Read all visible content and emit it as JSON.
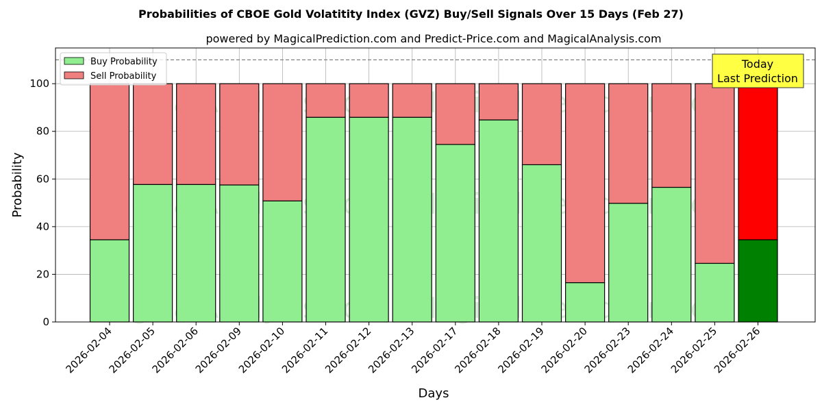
{
  "chart_data": {
    "type": "bar",
    "stacked": true,
    "title": "Probabilities of CBOE Gold Volatitity Index (GVZ) Buy/Sell Signals Over 15 Days (Feb 27)",
    "subtitle": "powered by MagicalPrediction.com and Predict-Price.com and MagicalAnalysis.com",
    "xlabel": "Days",
    "ylabel": "Probability",
    "ylim": [
      0,
      115
    ],
    "yticks": [
      0,
      20,
      40,
      60,
      80,
      100
    ],
    "reference_line": 110,
    "grid": true,
    "legend_position": "top-left",
    "categories": [
      "2026-02-04",
      "2026-02-05",
      "2026-02-06",
      "2026-02-09",
      "2026-02-10",
      "2026-02-11",
      "2026-02-12",
      "2026-02-13",
      "2026-02-17",
      "2026-02-18",
      "2026-02-19",
      "2026-02-20",
      "2026-02-23",
      "2026-02-24",
      "2026-02-25",
      "2026-02-26"
    ],
    "series": [
      {
        "name": "Buy Probability",
        "color": "#90ee90",
        "highlight_color": "#008000",
        "values": [
          34.5,
          57.7,
          57.7,
          57.5,
          50.8,
          85.9,
          85.9,
          85.9,
          74.5,
          84.8,
          66.0,
          16.5,
          49.8,
          56.5,
          24.6,
          34.5
        ]
      },
      {
        "name": "Sell Probability",
        "color": "#f08080",
        "highlight_color": "#ff0000",
        "values": [
          65.5,
          42.3,
          42.3,
          42.5,
          49.2,
          14.1,
          14.1,
          14.1,
          25.5,
          15.2,
          34.0,
          83.5,
          50.2,
          43.5,
          75.4,
          65.5
        ]
      }
    ],
    "highlight_index": 15,
    "annotation": {
      "lines": [
        "Today",
        "Last Prediction"
      ],
      "background": "#ffff44"
    },
    "watermarks": [
      "MagicalAnalysis.com",
      "MagicalPrediction.com"
    ]
  }
}
